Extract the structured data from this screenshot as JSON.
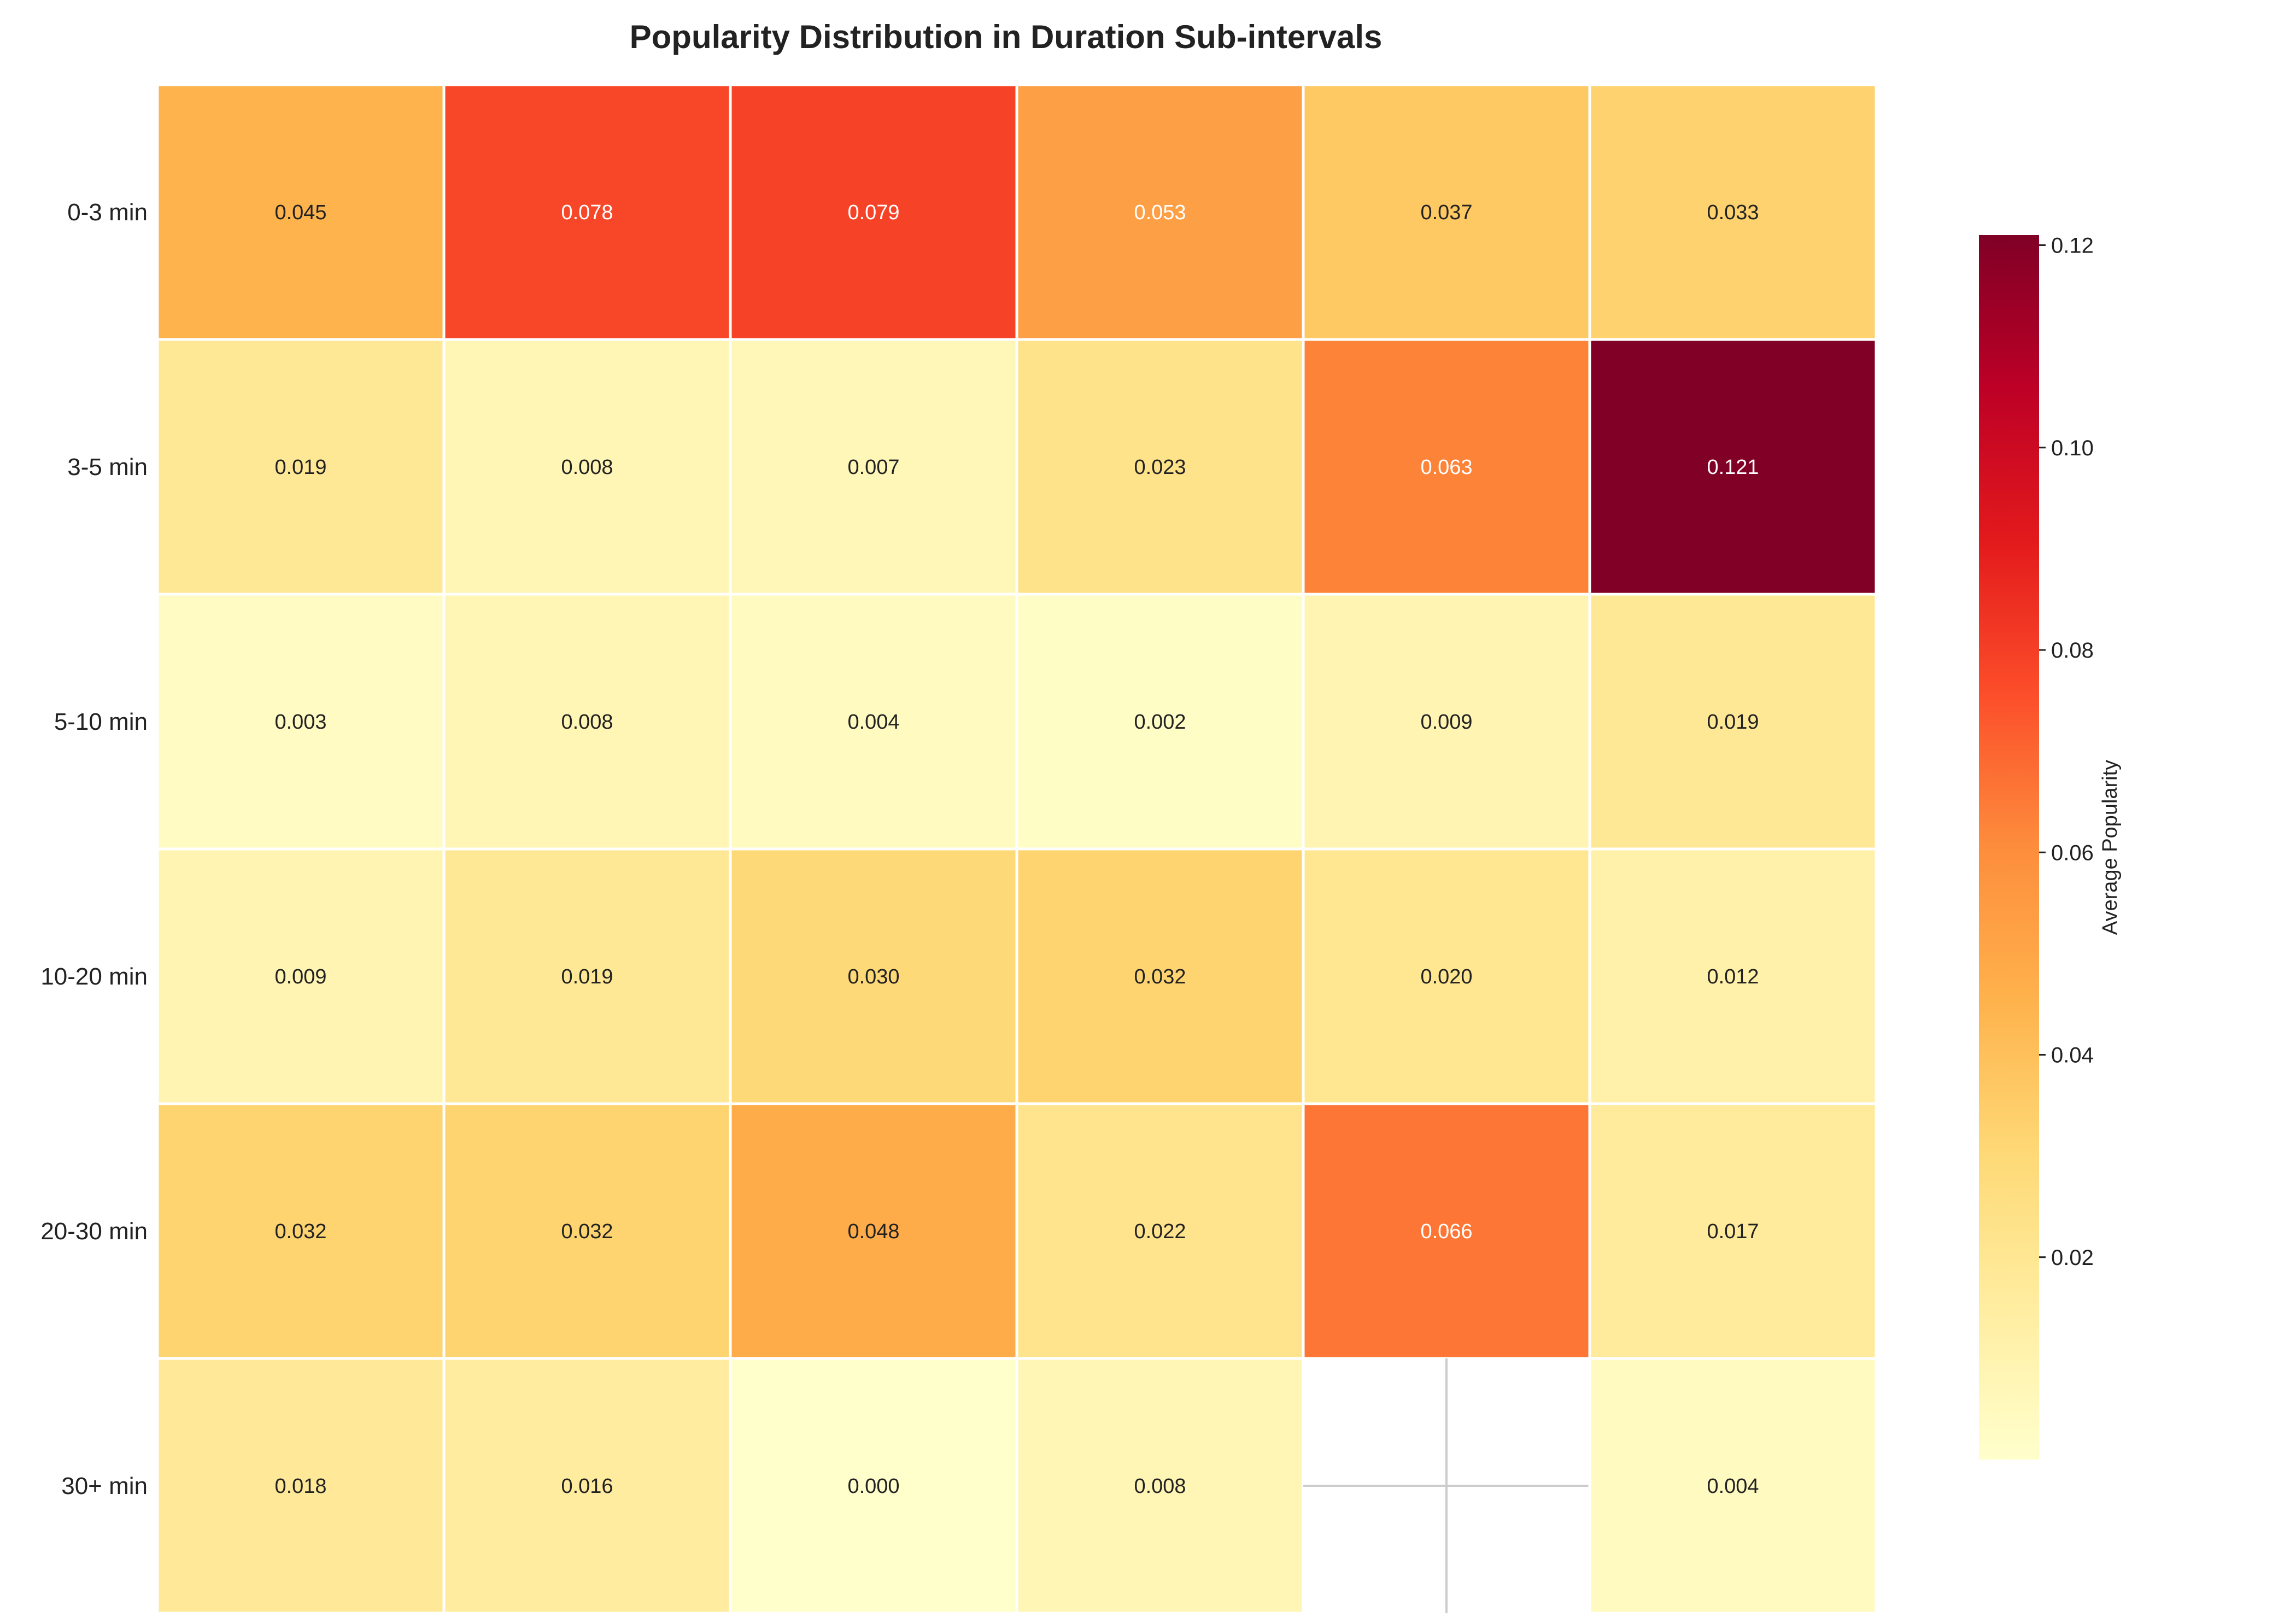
{
  "chart_data": {
    "type": "heatmap",
    "title": "Popularity Distribution in Duration Sub-intervals",
    "rows": [
      "0-3 min",
      "3-5 min",
      "5-10 min",
      "10-20 min",
      "20-30 min",
      "30+ min"
    ],
    "columns": [
      "",
      "",
      "",
      "",
      "",
      ""
    ],
    "values": [
      [
        0.045,
        0.078,
        0.079,
        0.053,
        0.037,
        0.033
      ],
      [
        0.019,
        0.008,
        0.007,
        0.023,
        0.063,
        0.121
      ],
      [
        0.003,
        0.008,
        0.004,
        0.002,
        0.009,
        0.019
      ],
      [
        0.009,
        0.019,
        0.03,
        0.032,
        0.02,
        0.012
      ],
      [
        0.032,
        0.032,
        0.048,
        0.022,
        0.066,
        0.017
      ],
      [
        0.018,
        0.016,
        0.0,
        0.008,
        null,
        0.004
      ]
    ],
    "value_labels": [
      [
        "0.045",
        "0.078",
        "0.079",
        "0.053",
        "0.037",
        "0.033"
      ],
      [
        "0.019",
        "0.008",
        "0.007",
        "0.023",
        "0.063",
        "0.121"
      ],
      [
        "0.003",
        "0.008",
        "0.004",
        "0.002",
        "0.009",
        "0.019"
      ],
      [
        "0.009",
        "0.019",
        "0.030",
        "0.032",
        "0.020",
        "0.012"
      ],
      [
        "0.032",
        "0.032",
        "0.048",
        "0.022",
        "0.066",
        "0.017"
      ],
      [
        "0.018",
        "0.016",
        "0.000",
        "0.008",
        "",
        "0.004"
      ]
    ],
    "colorbar": {
      "label": "Average Popularity",
      "min": 0.0,
      "max": 0.121,
      "ticks": [
        0.02,
        0.04,
        0.06,
        0.08,
        0.1,
        0.12
      ],
      "tick_labels": [
        "0.02",
        "0.04",
        "0.06",
        "0.08",
        "0.10",
        "0.12"
      ],
      "colormap": "YlOrRd",
      "colormap_stops": [
        "#ffffcc",
        "#ffeda0",
        "#fed976",
        "#feb24c",
        "#fd8d3c",
        "#fc4e2a",
        "#e31a1c",
        "#bd0026",
        "#800026"
      ]
    },
    "colors": {
      "cell_border": "#ffffff",
      "missing_grid": "#cccccc",
      "text_dark": "#222222",
      "text_light": "#ffffff"
    }
  }
}
